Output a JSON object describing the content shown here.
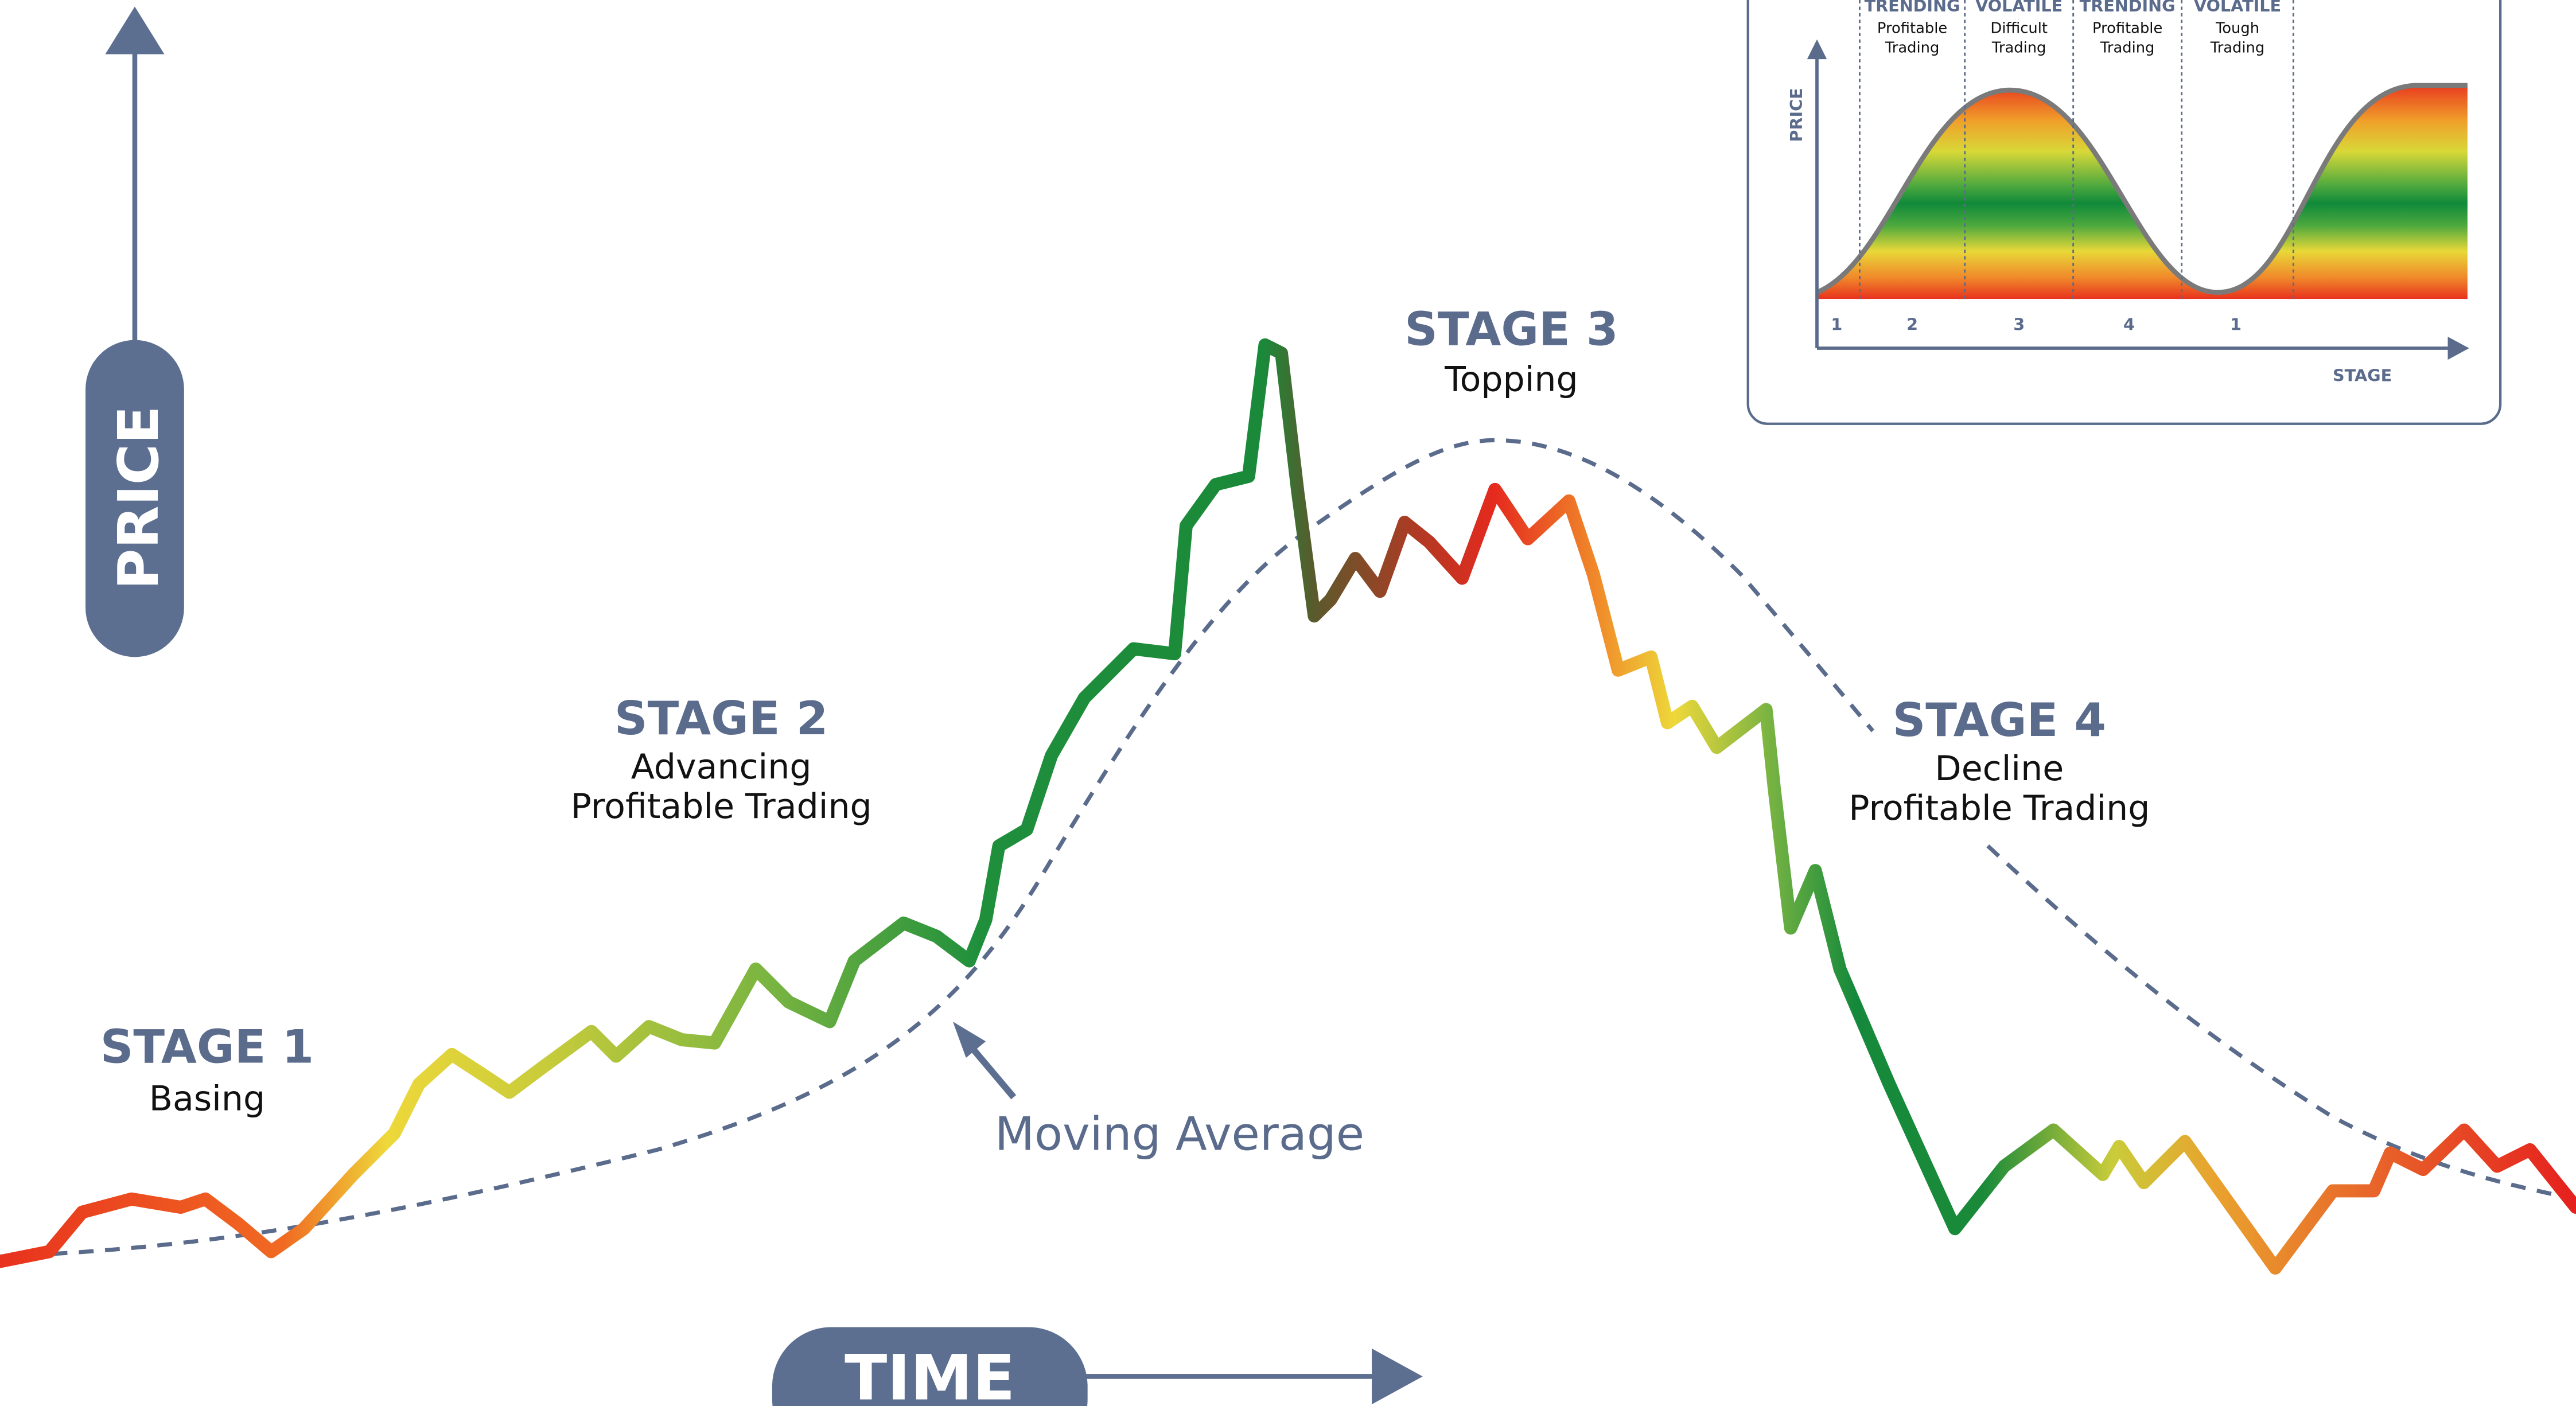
{
  "price_axis": {
    "label": "PRICE"
  },
  "time_axis": {
    "label": "TIME"
  },
  "stages": [
    {
      "title": "STAGE 1",
      "lines": [
        "Basing"
      ]
    },
    {
      "title": "STAGE 2",
      "lines": [
        "Advancing",
        "Profitable Trading"
      ]
    },
    {
      "title": "STAGE 3",
      "lines": [
        "Topping"
      ]
    },
    {
      "title": "STAGE 4",
      "lines": [
        "Decline",
        "Profitable Trading"
      ]
    }
  ],
  "moving_average": {
    "label": "Moving Average"
  },
  "inset": {
    "phases": [
      {
        "name": "TRENDING",
        "lines": [
          "Profitable",
          "Trading"
        ]
      },
      {
        "name": "VOLATILE",
        "lines": [
          "Difficult",
          "Trading"
        ]
      },
      {
        "name": "TRENDING",
        "lines": [
          "Profitable",
          "Trading"
        ]
      },
      {
        "name": "VOLATILE",
        "lines": [
          "Tough",
          "Trading"
        ]
      }
    ],
    "y_label": "PRICE",
    "x_label": "STAGE",
    "stage_numbers": [
      "1",
      "2",
      "3",
      "4",
      "1"
    ]
  }
}
